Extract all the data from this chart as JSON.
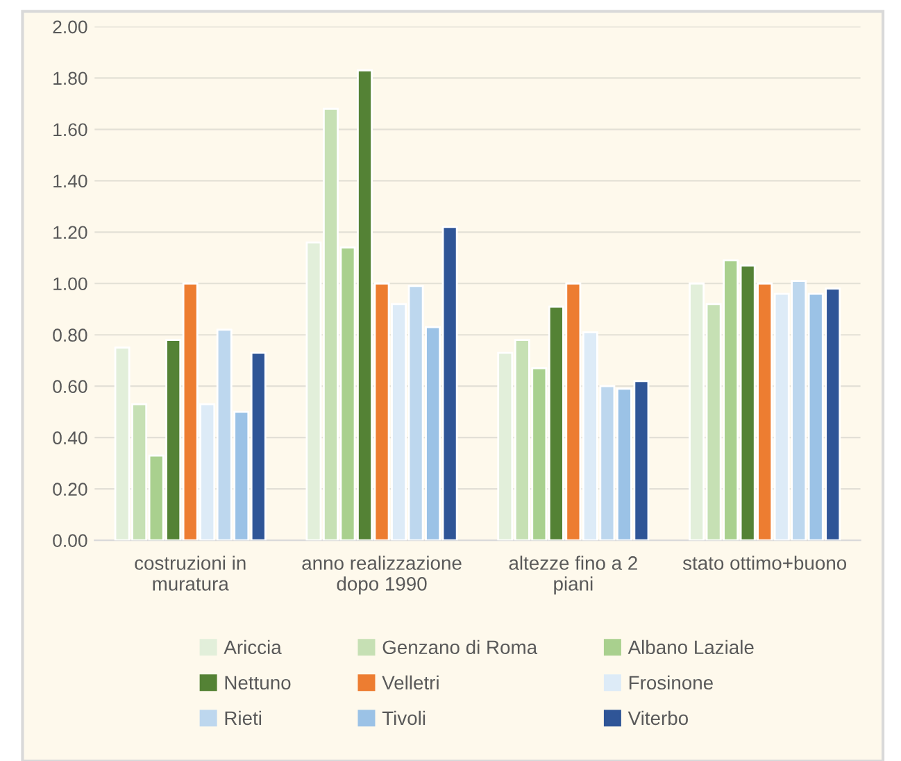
{
  "chart_data": {
    "type": "bar",
    "categories": [
      "costruzioni in\nmuratura",
      "anno realizzazione\ndopo 1990",
      "altezze fino a 2\npiani",
      "stato ottimo+buono"
    ],
    "series": [
      {
        "name": "Ariccia",
        "color": "#e2efda",
        "values": [
          0.75,
          1.16,
          0.73,
          1.0
        ]
      },
      {
        "name": "Genzano di Roma",
        "color": "#c6e0b4",
        "values": [
          0.53,
          1.68,
          0.78,
          0.92
        ]
      },
      {
        "name": "Albano Laziale",
        "color": "#a9d08e",
        "values": [
          0.33,
          1.14,
          0.67,
          1.09
        ]
      },
      {
        "name": "Nettuno",
        "color": "#548235",
        "values": [
          0.78,
          1.83,
          0.91,
          1.07
        ]
      },
      {
        "name": "Velletri",
        "color": "#ed7d31",
        "values": [
          1.0,
          1.0,
          1.0,
          1.0
        ]
      },
      {
        "name": "Frosinone",
        "color": "#ddebf7",
        "values": [
          0.53,
          0.92,
          0.81,
          0.96
        ]
      },
      {
        "name": "Rieti",
        "color": "#bdd7ee",
        "values": [
          0.82,
          0.99,
          0.6,
          1.01
        ]
      },
      {
        "name": "Tivoli",
        "color": "#9bc2e6",
        "values": [
          0.5,
          0.83,
          0.59,
          0.96
        ]
      },
      {
        "name": "Viterbo",
        "color": "#2f5597",
        "values": [
          0.73,
          1.22,
          0.62,
          0.98
        ]
      }
    ],
    "ylim": [
      0,
      2.0
    ],
    "yticks": [
      {
        "value": 0,
        "label": "0.00"
      },
      {
        "value": 0.2,
        "label": "0.20"
      },
      {
        "value": 0.4,
        "label": "0.40"
      },
      {
        "value": 0.6,
        "label": "0.60"
      },
      {
        "value": 0.8,
        "label": "0.80"
      },
      {
        "value": 1.0,
        "label": "1.00"
      },
      {
        "value": 1.2,
        "label": "1.20"
      },
      {
        "value": 1.4,
        "label": "1.40"
      },
      {
        "value": 1.6,
        "label": "1.60"
      },
      {
        "value": 1.8,
        "label": "1.80"
      },
      {
        "value": 2.0,
        "label": "2.00"
      }
    ],
    "grid": "y",
    "legend": "bottom"
  }
}
